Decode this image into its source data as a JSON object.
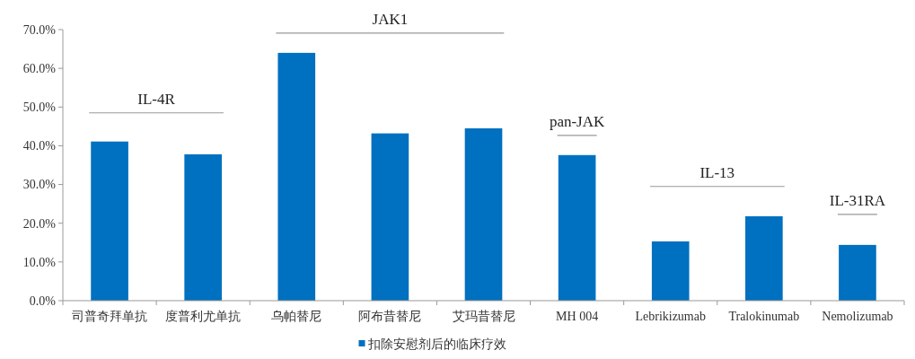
{
  "chart_data": {
    "type": "bar",
    "categories": [
      "司普奇拜单抗",
      "度普利尤单抗",
      "乌帕替尼",
      "阿布昔替尼",
      "艾玛昔替尼",
      "MH 004",
      "Lebrikizumab",
      "Tralokinumab",
      "Nemolizumab"
    ],
    "series": [
      {
        "name": "扣除安慰剂后的临床疗效",
        "color": "#0070c0",
        "values": [
          41.1,
          37.8,
          64.0,
          43.2,
          44.5,
          37.6,
          15.3,
          21.8,
          14.4
        ]
      }
    ],
    "ylim": [
      0,
      70
    ],
    "yticks": [
      {
        "value": 0,
        "label": "0.0%"
      },
      {
        "value": 10,
        "label": "10.0%"
      },
      {
        "value": 20,
        "label": "20.0%"
      },
      {
        "value": 30,
        "label": "30.0%"
      },
      {
        "value": 40,
        "label": "40.0%"
      },
      {
        "value": 50,
        "label": "50.0%"
      },
      {
        "value": 60,
        "label": "60.0%"
      },
      {
        "value": 70,
        "label": "70.0%"
      }
    ],
    "annotations": [
      "IL-4R",
      "JAK1",
      "pan-JAK",
      "IL-13",
      "IL-31RA"
    ],
    "grid": false,
    "legend": "bottom"
  }
}
